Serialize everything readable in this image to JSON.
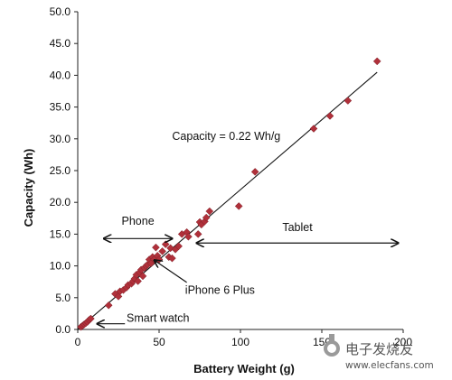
{
  "chart_data": {
    "type": "scatter",
    "title": "",
    "xlabel": "Battery Weight (g)",
    "ylabel": "Capacity (Wh)",
    "xlim": [
      0,
      200
    ],
    "ylim": [
      0,
      50
    ],
    "x_ticks": [
      "0",
      "50",
      "100",
      "150",
      "200"
    ],
    "y_ticks": [
      "0.0",
      "5.0",
      "10.0",
      "15.0",
      "20.0",
      "25.0",
      "30.0",
      "35.0",
      "40.0",
      "45.0",
      "50.0"
    ],
    "grid": false,
    "marker_color": "#b0303a",
    "trendline": {
      "slope": 0.22,
      "x_start": 0,
      "x_end": 184,
      "label": "Capacity = 0.22 Wh/g"
    },
    "points": [
      [
        2,
        0.4
      ],
      [
        3,
        0.6
      ],
      [
        4,
        0.8
      ],
      [
        5,
        1.0
      ],
      [
        6,
        1.2
      ],
      [
        7,
        1.5
      ],
      [
        8,
        1.7
      ],
      [
        19,
        3.8
      ],
      [
        23,
        5.6
      ],
      [
        25,
        5.2
      ],
      [
        26,
        6.0
      ],
      [
        28,
        6.2
      ],
      [
        30,
        6.6
      ],
      [
        31,
        7.0
      ],
      [
        33,
        7.2
      ],
      [
        34,
        7.6
      ],
      [
        35,
        8.0
      ],
      [
        36,
        8.6
      ],
      [
        37,
        7.6
      ],
      [
        38,
        9.0
      ],
      [
        39,
        9.4
      ],
      [
        40,
        8.4
      ],
      [
        41,
        9.7
      ],
      [
        42,
        10.0
      ],
      [
        43,
        10.2
      ],
      [
        44,
        11.0
      ],
      [
        45,
        10.4
      ],
      [
        46,
        11.4
      ],
      [
        47,
        11.0
      ],
      [
        48,
        12.9
      ],
      [
        49,
        11.6
      ],
      [
        50,
        11.0
      ],
      [
        52,
        12.3
      ],
      [
        54,
        13.4
      ],
      [
        56,
        11.4
      ],
      [
        57,
        12.8
      ],
      [
        58,
        11.2
      ],
      [
        60,
        12.6
      ],
      [
        62,
        13.1
      ],
      [
        64,
        15.0
      ],
      [
        67,
        15.3
      ],
      [
        68,
        14.6
      ],
      [
        74,
        15.0
      ],
      [
        75,
        16.9
      ],
      [
        76,
        16.5
      ],
      [
        78,
        17.0
      ],
      [
        79,
        17.6
      ],
      [
        81,
        18.6
      ],
      [
        99,
        19.4
      ],
      [
        109,
        24.8
      ],
      [
        145,
        31.6
      ],
      [
        155,
        33.6
      ],
      [
        166,
        36.0
      ],
      [
        184,
        42.2
      ]
    ],
    "annotations": [
      {
        "text": "Phone",
        "arrow": "double",
        "from_x": 16,
        "to_x": 58,
        "at_y": 14.3,
        "text_x": 37,
        "text_y": 16.5
      },
      {
        "text": "Tablet",
        "arrow": "double",
        "from_x": 73,
        "to_x": 197,
        "at_y": 13.6,
        "text_x": 135,
        "text_y": 15.5
      },
      {
        "text": "iPhone 6 Plus",
        "arrow": "single",
        "from_x": 67,
        "from_y": 7.4,
        "to_x": 47,
        "to_y": 10.9,
        "text_x": 66,
        "text_y": 5.6
      },
      {
        "text": "Smart watch",
        "arrow": "single",
        "from_x": 29,
        "from_y": 0.9,
        "to_x": 12,
        "to_y": 0.9,
        "text_x": 30,
        "text_y": 1.2
      }
    ]
  },
  "watermark": {
    "brand_mark": "电子发烧友",
    "url": "www.elecfans.com"
  }
}
